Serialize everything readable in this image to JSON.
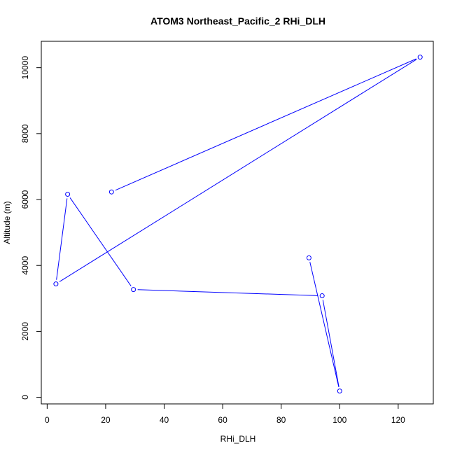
{
  "chart_data": {
    "type": "line",
    "title": "ATOM3 Northeast_Pacific_2 RHi_DLH",
    "xlabel": "RHi_DLH",
    "ylabel": "Altitude (m)",
    "xlim": [
      -2,
      132
    ],
    "ylim": [
      -200,
      10800
    ],
    "x_ticks": [
      0,
      20,
      40,
      60,
      80,
      100,
      120
    ],
    "y_ticks": [
      0,
      2000,
      4000,
      6000,
      8000,
      10000
    ],
    "x_tick_labels": [
      "0",
      "20",
      "40",
      "60",
      "80",
      "100",
      "120"
    ],
    "y_tick_labels": [
      "0",
      "2000",
      "4000",
      "6000",
      "8000",
      "10000"
    ],
    "grid": false,
    "marker": "open-circle",
    "series": [
      {
        "color": "#0000ff",
        "points": [
          {
            "x": 22,
            "y": 6230
          },
          {
            "x": 127.5,
            "y": 10320
          },
          {
            "x": 3,
            "y": 3440
          },
          {
            "x": 7,
            "y": 6160
          },
          {
            "x": 29.5,
            "y": 3270
          },
          {
            "x": 94,
            "y": 3080
          },
          {
            "x": 100,
            "y": 190
          },
          {
            "x": 89.5,
            "y": 4230
          }
        ]
      }
    ]
  }
}
